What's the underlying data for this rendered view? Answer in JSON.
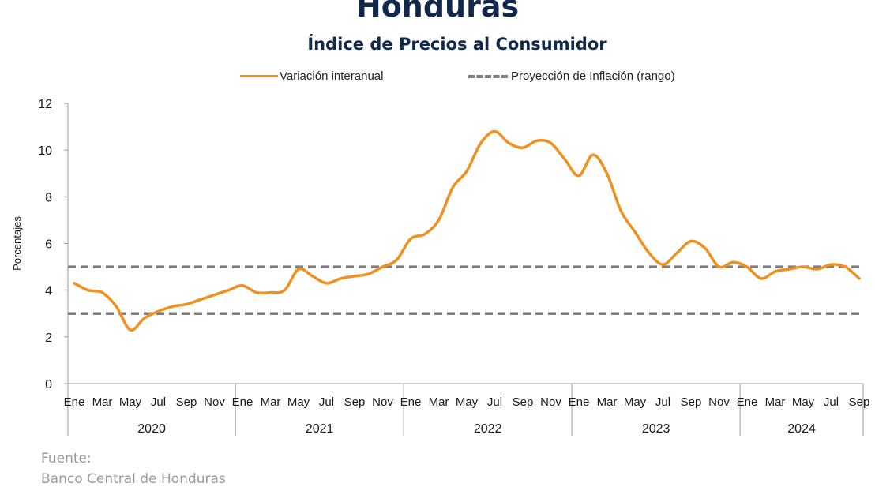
{
  "header": {
    "title": "Honduras",
    "subtitle": "Índice de Precios al Consumidor"
  },
  "legend": {
    "series": "Variación interanual",
    "range": "Proyección de Inflación (rango)"
  },
  "source": {
    "label": "Fuente:",
    "text": "Banco Central de Honduras"
  },
  "colors": {
    "series": "#f0901e",
    "range": "#7f7f7f",
    "title": "#12284a"
  },
  "chart_data": {
    "type": "line",
    "ylabel": "Porcentajes",
    "ylim": [
      0,
      12
    ],
    "yticks": [
      0,
      2,
      4,
      6,
      8,
      10,
      12
    ],
    "grid": false,
    "legend_position": "top",
    "month_tick_labels": [
      "Ene",
      "Mar",
      "May",
      "Jul",
      "Sep",
      "Nov"
    ],
    "last_year_tick_labels": [
      "Ene",
      "Mar",
      "May",
      "Jul",
      "Sep"
    ],
    "years": [
      "2020",
      "2021",
      "2022",
      "2023",
      "2024"
    ],
    "x": [
      "2020-01",
      "2020-02",
      "2020-03",
      "2020-04",
      "2020-05",
      "2020-06",
      "2020-07",
      "2020-08",
      "2020-09",
      "2020-10",
      "2020-11",
      "2020-12",
      "2021-01",
      "2021-02",
      "2021-03",
      "2021-04",
      "2021-05",
      "2021-06",
      "2021-07",
      "2021-08",
      "2021-09",
      "2021-10",
      "2021-11",
      "2021-12",
      "2022-01",
      "2022-02",
      "2022-03",
      "2022-04",
      "2022-05",
      "2022-06",
      "2022-07",
      "2022-08",
      "2022-09",
      "2022-10",
      "2022-11",
      "2022-12",
      "2023-01",
      "2023-02",
      "2023-03",
      "2023-04",
      "2023-05",
      "2023-06",
      "2023-07",
      "2023-08",
      "2023-09",
      "2023-10",
      "2023-11",
      "2023-12",
      "2024-01",
      "2024-02",
      "2024-03",
      "2024-04",
      "2024-05",
      "2024-06",
      "2024-07",
      "2024-08",
      "2024-09"
    ],
    "series": [
      {
        "name": "Variación interanual",
        "values": [
          4.3,
          4.0,
          3.9,
          3.3,
          2.3,
          2.8,
          3.1,
          3.3,
          3.4,
          3.6,
          3.8,
          4.0,
          4.2,
          3.9,
          3.9,
          4.0,
          4.9,
          4.6,
          4.3,
          4.5,
          4.6,
          4.7,
          5.0,
          5.3,
          6.2,
          6.4,
          7.0,
          8.4,
          9.1,
          10.3,
          10.8,
          10.3,
          10.1,
          10.4,
          10.3,
          9.6,
          8.9,
          9.8,
          9.0,
          7.4,
          6.5,
          5.6,
          5.1,
          5.6,
          6.1,
          5.8,
          5.0,
          5.2,
          5.0,
          4.5,
          4.8,
          4.9,
          5.0,
          4.9,
          5.1,
          5.0,
          4.5
        ]
      }
    ],
    "range_lines": [
      {
        "name": "Proyección de Inflación (rango)",
        "values": [
          3,
          5
        ]
      }
    ]
  }
}
